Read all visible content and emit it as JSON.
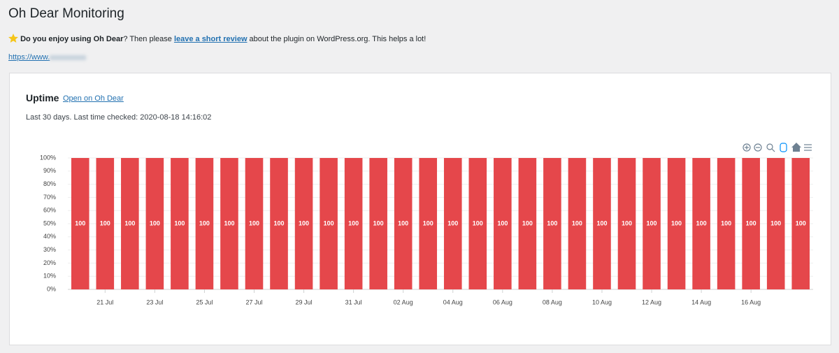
{
  "header": {
    "title": "Oh Dear Monitoring",
    "review": {
      "bold": "Do you enjoy using Oh Dear",
      "text1": "? Then please ",
      "link": "leave a short review",
      "text2": " about the plugin on WordPress.org. This helps a lot!"
    },
    "site_url": "https://www."
  },
  "card": {
    "title": "Uptime",
    "link": "Open on Oh Dear",
    "subtitle": "Last 30 days. Last time checked: 2020-08-18 14:16:02"
  },
  "chart_data": {
    "type": "bar",
    "color": "#e5474b",
    "categories": [
      null,
      "21 Jul",
      null,
      "23 Jul",
      null,
      "25 Jul",
      null,
      "27 Jul",
      null,
      "29 Jul",
      null,
      "31 Jul",
      null,
      "02 Aug",
      null,
      "04 Aug",
      null,
      "06 Aug",
      null,
      "08 Aug",
      null,
      "10 Aug",
      null,
      "12 Aug",
      null,
      "14 Aug",
      null,
      "16 Aug",
      null,
      null
    ],
    "values": [
      100,
      100,
      100,
      100,
      100,
      100,
      100,
      100,
      100,
      100,
      100,
      100,
      100,
      100,
      100,
      100,
      100,
      100,
      100,
      100,
      100,
      100,
      100,
      100,
      100,
      100,
      100,
      100,
      100,
      100
    ],
    "ylim": [
      0,
      100
    ],
    "yticks": [
      {
        "value": 0,
        "label": "0%"
      },
      {
        "value": 10,
        "label": "10%"
      },
      {
        "value": 20,
        "label": "20%"
      },
      {
        "value": 30,
        "label": "30%"
      },
      {
        "value": 40,
        "label": "40%"
      },
      {
        "value": 50,
        "label": "50%"
      },
      {
        "value": 60,
        "label": "60%"
      },
      {
        "value": 70,
        "label": "70%"
      },
      {
        "value": 80,
        "label": "80%"
      },
      {
        "value": 90,
        "label": "90%"
      },
      {
        "value": 100,
        "label": "100%"
      }
    ],
    "grid": true
  }
}
